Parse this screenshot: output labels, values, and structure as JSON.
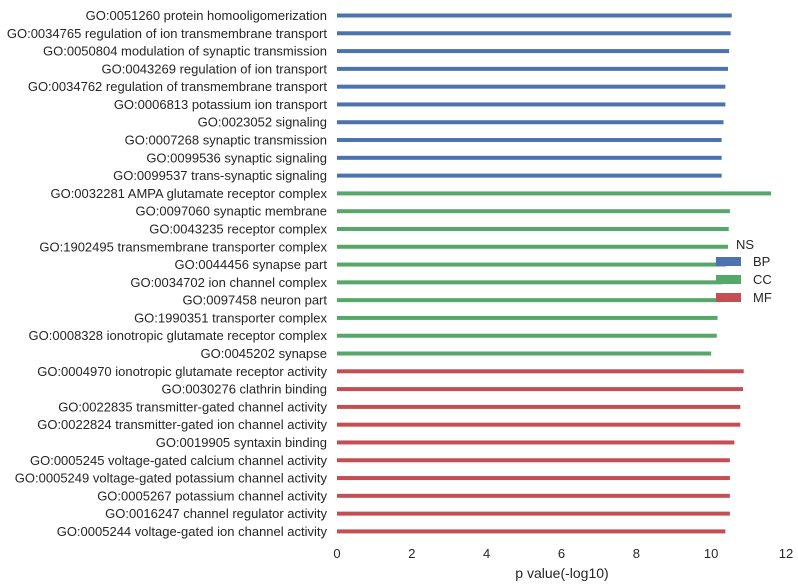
{
  "chart_data": {
    "type": "bar",
    "orientation": "horizontal",
    "xlabel": "p value(-log10)",
    "xlim": [
      0,
      12
    ],
    "xticks": [
      0,
      2,
      4,
      6,
      8,
      10,
      12
    ],
    "grid": false,
    "legend": {
      "title": "NS",
      "placement": "right",
      "entries": [
        {
          "label": "BP",
          "color": "#4c72b0"
        },
        {
          "label": "CC",
          "color": "#55a868"
        },
        {
          "label": "MF",
          "color": "#c44e52"
        }
      ]
    },
    "series": [
      {
        "name": "BP",
        "color": "#4c72b0",
        "categories": [
          "GO:0051260 protein homooligomerization",
          "GO:0034765 regulation of ion transmembrane transport",
          "GO:0050804 modulation of synaptic transmission",
          "GO:0043269 regulation of ion transport",
          "GO:0034762 regulation of transmembrane transport",
          "GO:0006813 potassium ion transport",
          "GO:0023052 signaling",
          "GO:0007268 synaptic transmission",
          "GO:0099536 synaptic signaling",
          "GO:0099537 trans-synaptic signaling"
        ],
        "values": [
          10.55,
          10.52,
          10.48,
          10.45,
          10.38,
          10.38,
          10.33,
          10.28,
          10.28,
          10.28
        ]
      },
      {
        "name": "CC",
        "color": "#55a868",
        "categories": [
          "GO:0032281 AMPA glutamate receptor complex",
          "GO:0097060 synaptic membrane",
          "GO:0043235 receptor complex",
          "GO:1902495 transmembrane transporter complex",
          "GO:0044456 synapse part",
          "GO:0034702 ion channel complex",
          "GO:0097458 neuron part",
          "GO:1990351 transporter complex",
          "GO:0008328 ionotropic glutamate receptor complex",
          "GO:0045202 synapse"
        ],
        "values": [
          11.6,
          10.5,
          10.47,
          10.45,
          10.4,
          10.3,
          10.28,
          10.17,
          10.15,
          10.0
        ]
      },
      {
        "name": "MF",
        "color": "#c44e52",
        "categories": [
          "GO:0004970 ionotropic glutamate receptor activity",
          "GO:0030276 clathrin binding",
          "GO:0022835 transmitter-gated channel activity",
          "GO:0022824 transmitter-gated ion channel activity",
          "GO:0019905 syntaxin binding",
          "GO:0005245 voltage-gated calcium channel activity",
          "GO:0005249 voltage-gated potassium channel activity",
          "GO:0005267 potassium channel activity",
          "GO:0016247 channel regulator activity",
          "GO:0005244 voltage-gated ion channel activity"
        ],
        "values": [
          10.87,
          10.85,
          10.78,
          10.78,
          10.62,
          10.5,
          10.5,
          10.5,
          10.5,
          10.38
        ]
      }
    ]
  }
}
